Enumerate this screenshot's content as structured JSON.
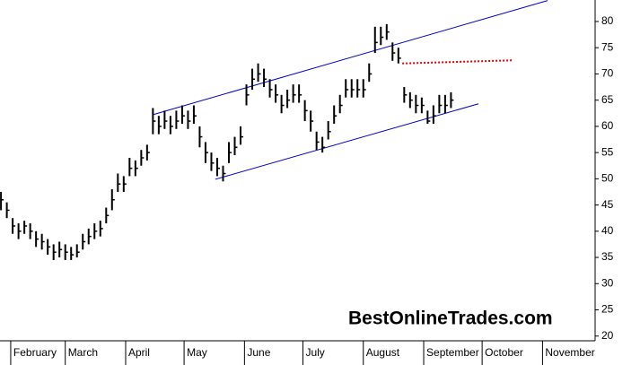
{
  "chart_data": {
    "type": "ohlc",
    "watermark": "BestOnlineTrades.com",
    "x": [
      26,
      29,
      32,
      35,
      38,
      41,
      44,
      47,
      50,
      53,
      56,
      59,
      62,
      65,
      68,
      71,
      74,
      77,
      80,
      83,
      86,
      89,
      92,
      95,
      98,
      101,
      104,
      107,
      110,
      113,
      116,
      119,
      122,
      125,
      128,
      131,
      134,
      137,
      140,
      143,
      146,
      149,
      152,
      155,
      158,
      161,
      164,
      167,
      170,
      173,
      176,
      179,
      182,
      185,
      188,
      191,
      194,
      197,
      200,
      203,
      206,
      209,
      212,
      215,
      218,
      221,
      224,
      227,
      230,
      233,
      236,
      239,
      242,
      245,
      248,
      251,
      254,
      257
    ],
    "series": [
      {
        "color": "#000000",
        "high": [
          47.5,
          45.5,
          42.5,
          41.5,
          42,
          41.5,
          40,
          39.5,
          38.5,
          37.5,
          38,
          37.5,
          37,
          37.5,
          39.5,
          40.5,
          41.5,
          42,
          44.5,
          48,
          51,
          50.5,
          54,
          53.5,
          55.5,
          56.5,
          63.5,
          62,
          63,
          62,
          63,
          64,
          63,
          64,
          60,
          57,
          55,
          54,
          52.5,
          57,
          58,
          60,
          68,
          71,
          72,
          71,
          69,
          68,
          66,
          67,
          68,
          68,
          65,
          63,
          59,
          58,
          61,
          64,
          66,
          69,
          69,
          69,
          69,
          72,
          79,
          79,
          79.5,
          76,
          75,
          67.5,
          66.5,
          66,
          65.5,
          63,
          64,
          66,
          66,
          66.5
        ],
        "low": [
          44,
          42.5,
          39.5,
          38.5,
          39.5,
          38.5,
          37,
          36.5,
          35.5,
          34.5,
          35,
          34.5,
          34.5,
          35,
          36.5,
          37.5,
          38.5,
          39,
          41.5,
          44,
          47.5,
          47.5,
          50.5,
          50.5,
          52.5,
          53.5,
          58.5,
          58.5,
          59.5,
          58.5,
          59.5,
          60.5,
          59.5,
          60.5,
          56,
          53,
          51.5,
          50.5,
          49.5,
          53,
          54.5,
          56.5,
          64,
          67,
          68.5,
          67.5,
          65.5,
          64.5,
          62.5,
          63.5,
          64.5,
          64.5,
          61,
          59,
          55.5,
          55,
          57.5,
          60.5,
          62.5,
          65.5,
          65.5,
          65.5,
          65.5,
          68.5,
          74,
          75.5,
          76.5,
          72.5,
          72,
          64.5,
          63.5,
          62.5,
          62.5,
          60.5,
          60.5,
          62.5,
          62.5,
          63.5
        ],
        "close": [
          46,
          44,
          41,
          40,
          41,
          40,
          38.5,
          38,
          37,
          36,
          36.5,
          36,
          35.5,
          36,
          38,
          39,
          40,
          40.5,
          43,
          46,
          49,
          49,
          52,
          52,
          54,
          55,
          61,
          60,
          61,
          60,
          61,
          62,
          61,
          62,
          58,
          55,
          53,
          52,
          51,
          55,
          56,
          58,
          66,
          69,
          70,
          69,
          67,
          66,
          64,
          65,
          66,
          66,
          63,
          61,
          57,
          56,
          59,
          62,
          64,
          67,
          67,
          67,
          67,
          70,
          76,
          77,
          78,
          74,
          73,
          66,
          65,
          64,
          64,
          61,
          62,
          64,
          64,
          65
        ]
      }
    ],
    "lines": [
      {
        "color": "#0000cc",
        "style": "solid",
        "x": [
          103.8,
          306.6
        ],
        "y": [
          62.2,
          84
        ]
      },
      {
        "color": "#0000cc",
        "style": "solid",
        "x": [
          136,
          271.1
        ],
        "y": [
          49.9,
          64.3
        ]
      },
      {
        "color": "#e00000",
        "style": "dotted",
        "x": [
          232,
          289
        ],
        "y": [
          72,
          72.6
        ]
      }
    ],
    "xlim": [
      25.5,
      331
    ],
    "xticks": [
      {
        "value": 31,
        "label": "February"
      },
      {
        "value": 59,
        "label": "March"
      },
      {
        "value": 90,
        "label": "April"
      },
      {
        "value": 120,
        "label": "May"
      },
      {
        "value": 151,
        "label": "June"
      },
      {
        "value": 181,
        "label": "July"
      },
      {
        "value": 212,
        "label": "August"
      },
      {
        "value": 243,
        "label": "September"
      },
      {
        "value": 273,
        "label": "October"
      },
      {
        "value": 304,
        "label": "November"
      }
    ],
    "ylim": [
      19.1,
      84.1
    ],
    "yticks": [
      20,
      25,
      30,
      35,
      40,
      45,
      50,
      55,
      60,
      65,
      70,
      75,
      80
    ]
  }
}
